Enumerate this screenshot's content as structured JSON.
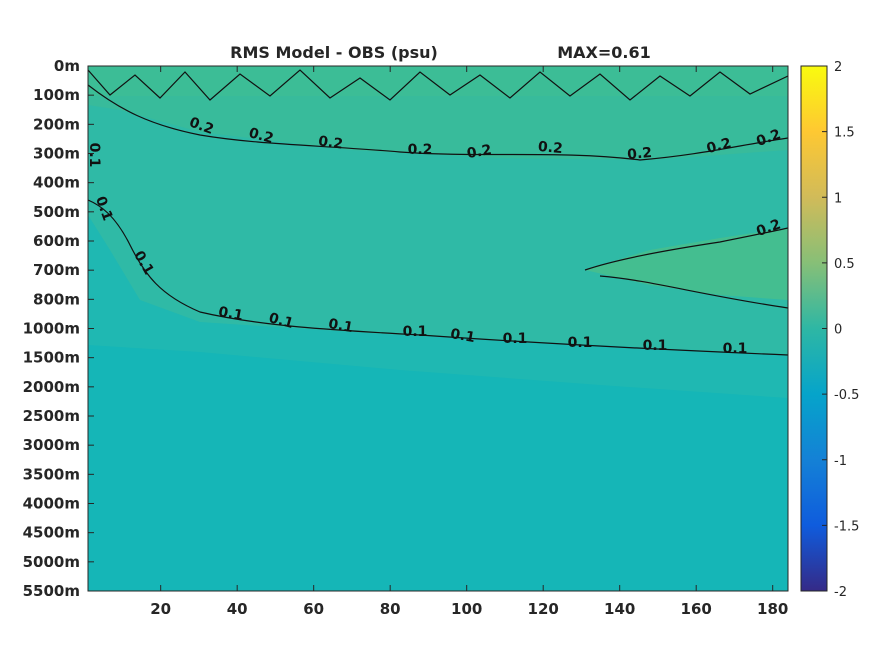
{
  "chart_data": {
    "type": "heatmap",
    "title": "RMS Model - OBS (psu)",
    "max_label": "MAX=0.61",
    "x_ticks": [
      "20",
      "40",
      "60",
      "80",
      "100",
      "120",
      "140",
      "160",
      "180"
    ],
    "x_tick_values": [
      20,
      40,
      60,
      80,
      100,
      120,
      140,
      160,
      180
    ],
    "xlim": [
      1,
      184
    ],
    "y_ticks": [
      "0m",
      "100m",
      "200m",
      "300m",
      "400m",
      "500m",
      "600m",
      "700m",
      "800m",
      "1000m",
      "1500m",
      "2000m",
      "2500m",
      "3000m",
      "3500m",
      "4000m",
      "4500m",
      "5000m",
      "5500m"
    ],
    "y_depths_m": [
      0,
      100,
      200,
      300,
      400,
      500,
      600,
      700,
      800,
      1000,
      1500,
      2000,
      2500,
      3000,
      3500,
      4000,
      4500,
      5000,
      5500
    ],
    "colorbar": {
      "ticks": [
        "2",
        "1.5",
        "1",
        "0.5",
        "0",
        "-0.5",
        "-1",
        "-1.5",
        "-2"
      ],
      "tick_values": [
        2,
        1.5,
        1,
        0.5,
        0,
        -0.5,
        -1,
        -1.5,
        -2
      ],
      "range": [
        -2,
        2
      ],
      "colormap": "parula"
    },
    "contours": [
      {
        "level": 0.2,
        "label": "0.2"
      },
      {
        "level": 0.1,
        "label": "0.1"
      }
    ],
    "contour_labels": [
      "0.1",
      "0.2"
    ],
    "field_colors": {
      "surface_band": "#3cbd96",
      "upper_layer": "#38bb9b",
      "mid_layer": "#2fbaa6",
      "deep_layer": "#1fb8b2",
      "abyss": "#15b6b7",
      "core": "#44be90"
    }
  }
}
